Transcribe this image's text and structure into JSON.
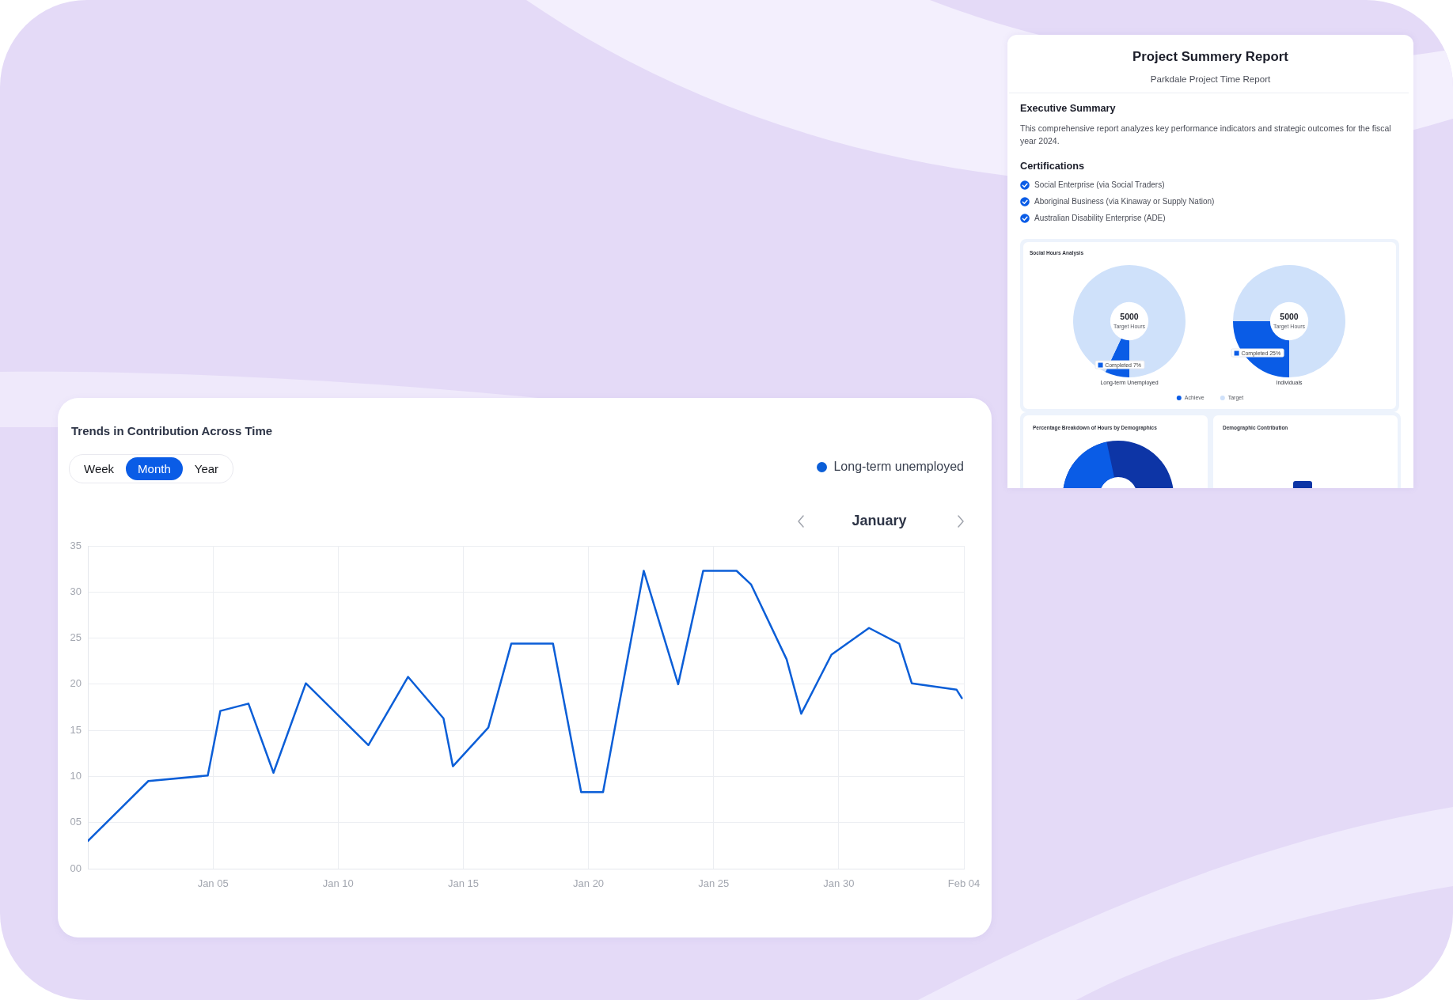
{
  "chart_data": [
    {
      "type": "line",
      "title": "Trends in Contribution Across Time",
      "subtitle": "January",
      "annotations": [
        "Week",
        "Month",
        "Year"
      ],
      "x": [
        "2023-12-31T00:00",
        "2024-01-02T10:00",
        "2024-01-04T19:00",
        "2024-01-05T07:00",
        "2024-01-06T10:00",
        "2024-01-07T10:00",
        "2024-01-08T17:00",
        "2024-01-11T05:00",
        "2024-01-12T19:00",
        "2024-01-14T05:00",
        "2024-01-14T14:00",
        "2024-01-16T00:00",
        "2024-01-16T22:00",
        "2024-01-18T14:00",
        "2024-01-19T17:00",
        "2024-01-20T14:00",
        "2024-01-22T05:00",
        "2024-01-23T14:00",
        "2024-01-24T14:00",
        "2024-01-25T22:00",
        "2024-01-26T12:00",
        "2024-01-27T22:00",
        "2024-01-28T12:00",
        "2024-01-29T17:00",
        "2024-01-31T05:00",
        "2024-02-01T10:00",
        "2024-02-01T22:00",
        "2024-02-03T17:00",
        "2024-02-03T22:00"
      ],
      "series": [
        {
          "name": "Long-term unemployed",
          "color": "#0b5ed7",
          "values": [
            3,
            9.5,
            10.1,
            17.1,
            17.9,
            10.4,
            20.1,
            13.4,
            20.8,
            16.3,
            11.1,
            15.3,
            24.4,
            24.4,
            8.3,
            8.3,
            32.3,
            20,
            32.3,
            32.3,
            30.8,
            22.7,
            16.8,
            23.2,
            26.1,
            24.4,
            20.1,
            19.4,
            18.5
          ]
        }
      ],
      "xlim": [
        "2023-12-31",
        "2024-02-04"
      ],
      "xticks": [
        {
          "value": "2024-01-05",
          "label": "Jan 05"
        },
        {
          "value": "2024-01-10",
          "label": "Jan 10"
        },
        {
          "value": "2024-01-15",
          "label": "Jan 15"
        },
        {
          "value": "2024-01-20",
          "label": "Jan 20"
        },
        {
          "value": "2024-01-25",
          "label": "Jan 25"
        },
        {
          "value": "2024-01-30",
          "label": "Jan 30"
        },
        {
          "value": "2024-02-04",
          "label": "Feb 04"
        }
      ],
      "ylim": [
        0,
        35
      ],
      "yticks": [
        {
          "value": 0,
          "label": "00"
        },
        {
          "value": 5,
          "label": "05"
        },
        10,
        15,
        20,
        25,
        30,
        35
      ],
      "grid": true,
      "legend": "top right"
    },
    {
      "type": "other",
      "title": "Project Summery Report",
      "subtitle": "Parkdale Project Time Report",
      "annotations": [
        "Executive Summary",
        "This comprehensive report analyzes key performance indicators and strategic outcomes for the fiscal year 2024.",
        "Certifications",
        "Social Enterprise (via Social Traders)",
        "Aboriginal Business (via Kinaway or Supply Nation)",
        "Australian Disability Enterprise (ADE)"
      ]
    },
    {
      "type": "donut",
      "title": "Social Hours Analysis",
      "xlabel": "Long-term Unemployed",
      "categories": [
        "Achieve",
        "Target"
      ],
      "values": [
        7,
        93
      ],
      "colors": [
        "#0a5ce6",
        "#cfe1fa"
      ],
      "value_labels": [
        "Completed 7%",
        null
      ],
      "annotations": [
        "5000",
        "Target Hours"
      ],
      "legend": "bottom"
    },
    {
      "type": "donut",
      "xlabel": "Individuals",
      "categories": [
        null,
        null
      ],
      "values": [
        25,
        75
      ],
      "colors": [
        "#0a5ce6",
        "#cfe1fa"
      ],
      "value_labels": [
        "Completed 25%",
        null
      ],
      "annotations": [
        "5000",
        "Target Hours"
      ]
    },
    {
      "type": "other",
      "title": "Percentage Breakdown of Hours by Demographics"
    },
    {
      "type": "other",
      "title": "Demographic Contribution"
    }
  ]
}
